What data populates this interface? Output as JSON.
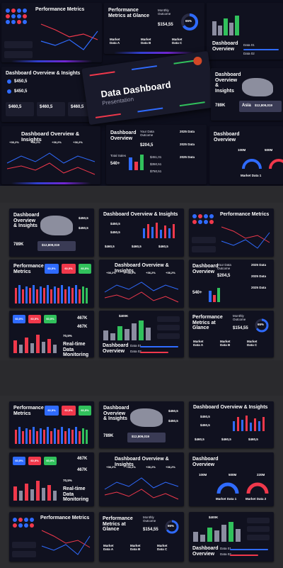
{
  "hero": {
    "title": "Data Dashboard",
    "subtitle": "Presentation"
  },
  "titles": {
    "performance_metrics": "Performance Metrics",
    "performance_metrics_at_glance": "Performance Metrics at Glance",
    "dashboard_overview_insights": "Dashboard Overview & Insights",
    "dashboard_overview": "Dashboard Overview",
    "realtime_monitoring": "Real-time Data Monitoring"
  },
  "values": {
    "monthly_outcome": "$154,55",
    "monthly_outcome_label": "Monthly Outcome",
    "percent_65": "65%",
    "market_data_a": "Market Data A",
    "market_data_b": "Market Data B",
    "market_data_c": "Market Data C",
    "market_data_1": "Market Data 1",
    "market_data_2": "Market Data 2",
    "data_01": "Data 01",
    "data_02": "Data 02",
    "val_450": "$450,5",
    "val_460": "$460,5",
    "asia": "Asia",
    "asia_value": "$12,809,019",
    "k789": "789K",
    "your_data_outcome": "Your Data Outcome",
    "outcome_value": "$204,5",
    "total_sales": "Total Sales",
    "sales_value": "540+",
    "d2025": "2025 Data",
    "v_451": "$451,01",
    "v_350": "$350,51",
    "v_750": "$750,51",
    "m100": "100M",
    "m500": "500M",
    "m220": "220M",
    "pct_plus": "+36,2%",
    "pct_605": "60,5%",
    "k467": "467K",
    "k70": "70,5%",
    "v400": "$400K"
  },
  "colors": {
    "bg": "#10111f",
    "card": "#1c1d2e",
    "blue": "#2f6bff",
    "red": "#f0384b",
    "green": "#31c15c",
    "gray": "#8b8da0"
  }
}
